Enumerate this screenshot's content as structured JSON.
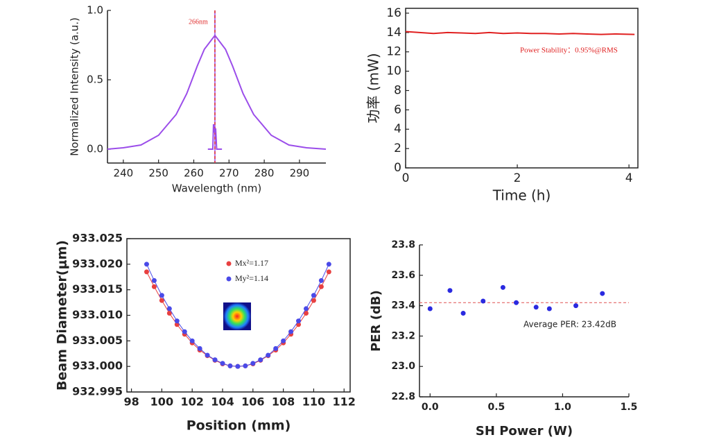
{
  "chart_data": [
    {
      "type": "line",
      "xlabel": "Wavelength (nm)",
      "ylabel": "Normalized Intensity (a.u.)",
      "frame": false,
      "xlim": [
        235.5,
        297.5
      ],
      "xticks": [
        240,
        250,
        260,
        270,
        280,
        290
      ],
      "ylim": [
        -0.1,
        1.0
      ],
      "yticks": [
        {
          "value": 0,
          "label": "0.0"
        },
        0.5,
        {
          "value": 1,
          "label": "1.0"
        }
      ],
      "annotations": [
        "266nm"
      ],
      "vlines": [
        {
          "x": 266,
          "color": "#9b4dea",
          "dash": false
        },
        {
          "x": 266,
          "color": "#e03030",
          "dash": true
        }
      ],
      "series": [
        {
          "color": "#9b4dea",
          "x": [
            235.5,
            240,
            245,
            250,
            255,
            258,
            261,
            263,
            266,
            269,
            271,
            274,
            277,
            282,
            287,
            292,
            297.5
          ],
          "values": [
            0,
            0.01,
            0.03,
            0.1,
            0.25,
            0.4,
            0.6,
            0.72,
            0.82,
            0.72,
            0.6,
            0.4,
            0.25,
            0.1,
            0.03,
            0.01,
            0
          ]
        },
        {
          "color": "#9b4dea",
          "x": [
            264,
            265.4,
            265.6,
            265.9,
            266.2,
            266.5,
            268
          ],
          "values": [
            0,
            0,
            0.18,
            0.12,
            0.15,
            0,
            0
          ]
        }
      ]
    },
    {
      "type": "line",
      "xlabel": "Time (h)",
      "ylabel": "功率 (mW)",
      "frame": true,
      "xlim": [
        0,
        4.16
      ],
      "xticks": [
        0,
        2,
        4
      ],
      "ylim": [
        0,
        16.5
      ],
      "yticks": [
        0,
        2,
        4,
        6,
        8,
        10,
        12,
        14,
        16
      ],
      "annotations": [
        "Power Stability：0.95%@RMS"
      ],
      "series": [
        {
          "color": "#e02020",
          "x": [
            0,
            0.25,
            0.5,
            0.75,
            1,
            1.25,
            1.5,
            1.75,
            2,
            2.25,
            2.5,
            2.75,
            3,
            3.25,
            3.5,
            3.75,
            4.1
          ],
          "values": [
            14.1,
            14.0,
            13.9,
            14.0,
            13.95,
            13.9,
            14.0,
            13.9,
            13.95,
            13.9,
            13.9,
            13.85,
            13.9,
            13.85,
            13.8,
            13.85,
            13.8
          ]
        }
      ]
    },
    {
      "type": "line",
      "xlabel": "Position (mm)",
      "ylabel": "Beam Diameter(μm)",
      "frame": true,
      "marker": true,
      "xlim": [
        97.7,
        112.4
      ],
      "xticks": [
        98,
        100,
        102,
        104,
        106,
        108,
        110,
        112
      ],
      "ylim": [
        932.995,
        933.025
      ],
      "yticks": [
        932.995,
        {
          "value": 933,
          "label": "933.000"
        },
        933.005,
        {
          "value": 933.01,
          "label": "933.010"
        },
        933.015,
        {
          "value": 933.02,
          "label": "933.020"
        },
        933.025
      ],
      "series": [
        {
          "name": "Mx²=1.17",
          "color": "#e84040",
          "x": [
            99,
            99.5,
            100,
            100.5,
            101,
            101.5,
            102,
            102.5,
            103,
            103.5,
            104,
            104.5,
            105,
            105.5,
            106,
            106.5,
            107,
            107.5,
            108,
            108.5,
            109,
            109.5,
            110,
            110.5,
            111
          ],
          "values": [
            933.0185,
            933.0156,
            933.0129,
            933.0104,
            933.0082,
            933.0063,
            933.0046,
            933.0032,
            933.0021,
            933.0012,
            933.0005,
            933.0001,
            933.0,
            933.0001,
            933.0005,
            933.0012,
            933.0021,
            933.0032,
            933.0046,
            933.0063,
            933.0082,
            933.0104,
            933.0129,
            933.0156,
            933.0185
          ]
        },
        {
          "name": "My²=1.14",
          "color": "#4a4ae8",
          "x": [
            99,
            99.5,
            100,
            100.5,
            101,
            101.5,
            102,
            102.5,
            103,
            103.5,
            104,
            104.5,
            105,
            105.5,
            106,
            106.5,
            107,
            107.5,
            108,
            108.5,
            109,
            109.5,
            110,
            110.5,
            111
          ],
          "values": [
            933.02,
            933.0168,
            933.0139,
            933.0113,
            933.0089,
            933.0068,
            933.005,
            933.0035,
            933.0022,
            933.0013,
            933.0006,
            933.0001,
            933.0,
            933.0001,
            933.0006,
            933.0013,
            933.0022,
            933.0035,
            933.005,
            933.0068,
            933.0089,
            933.0113,
            933.0139,
            933.0168,
            933.02
          ]
        }
      ]
    },
    {
      "type": "scatter",
      "xlabel": "SH Power (W)",
      "ylabel": "PER (dB)",
      "frame": false,
      "xlim": [
        -0.08,
        1.5
      ],
      "xticks": [
        {
          "value": 0,
          "label": "0.0"
        },
        0.5,
        {
          "value": 1,
          "label": "1.0"
        },
        1.5
      ],
      "ylim": [
        22.8,
        23.8
      ],
      "yticks": [
        22.8,
        {
          "value": 23,
          "label": "23.0"
        },
        23.2,
        23.4,
        23.6,
        23.8
      ],
      "annotations": [
        "Average PER: 23.42dB"
      ],
      "hlines": [
        {
          "y": 23.42,
          "color": "#e05050",
          "dash": true
        }
      ],
      "series": [
        {
          "color": "#2a2ae0",
          "x": [
            0,
            0.15,
            0.25,
            0.4,
            0.55,
            0.65,
            0.8,
            0.9,
            1.1,
            1.3
          ],
          "values": [
            23.38,
            23.5,
            23.35,
            23.43,
            23.52,
            23.42,
            23.39,
            23.38,
            23.4,
            23.48
          ]
        }
      ]
    }
  ]
}
